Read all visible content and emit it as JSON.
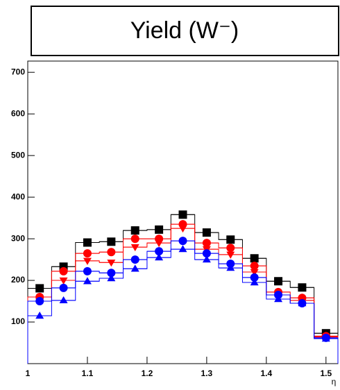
{
  "chart_data": {
    "type": "histogram",
    "title": "Yield (W⁻)",
    "xlabel": "η",
    "bins": [
      1.0,
      1.04,
      1.08,
      1.12,
      1.16,
      1.2,
      1.24,
      1.28,
      1.32,
      1.36,
      1.4,
      1.44,
      1.48,
      1.52
    ],
    "xlim": [
      1.0,
      1.52
    ],
    "ylim": [
      0,
      727
    ],
    "xticks": [
      1,
      1.1,
      1.2,
      1.3,
      1.4,
      1.5
    ],
    "yticks": [
      100,
      200,
      300,
      400,
      500,
      600,
      700
    ],
    "series": [
      {
        "color": "#000000",
        "marker": "square",
        "values": [
          181,
          233,
          291,
          293,
          320,
          322,
          358,
          315,
          298,
          253,
          198,
          183,
          73
        ]
      },
      {
        "color": "#ff0000",
        "marker": "circle",
        "values": [
          160,
          222,
          265,
          268,
          300,
          300,
          335,
          290,
          278,
          235,
          172,
          158,
          66
        ]
      },
      {
        "color": "#ff0000",
        "marker": "triangle-down",
        "values": [
          150,
          200,
          247,
          243,
          280,
          290,
          325,
          275,
          262,
          220,
          165,
          152,
          64
        ]
      },
      {
        "color": "#0000ff",
        "marker": "circle",
        "values": [
          150,
          182,
          222,
          218,
          250,
          270,
          295,
          265,
          240,
          207,
          165,
          145,
          62
        ]
      },
      {
        "color": "#0000ff",
        "marker": "triangle-up",
        "values": [
          115,
          152,
          198,
          205,
          228,
          255,
          275,
          250,
          230,
          195,
          155,
          145,
          60
        ]
      }
    ]
  }
}
